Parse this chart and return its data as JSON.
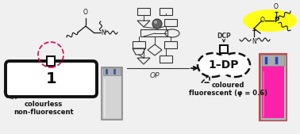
{
  "bg_color": "#f0f0f0",
  "label_1": "1",
  "label_1dp": "1–DP",
  "label_colourless": "colourless\nnon-fluorescent",
  "label_coloured": "coloured\nfluorescent (φ = 0.6)",
  "label_op": "OP",
  "label_dcp": "DCP",
  "box_fill": "#ffffff",
  "box_edge": "#111111",
  "pink_color": "#ff1aaa",
  "yellow_color": "#ffff00",
  "dashed_circle_color": "#dd0055",
  "molecule_color": "#111111",
  "mid_shape_color": "#333333",
  "arrow_color": "#111111"
}
